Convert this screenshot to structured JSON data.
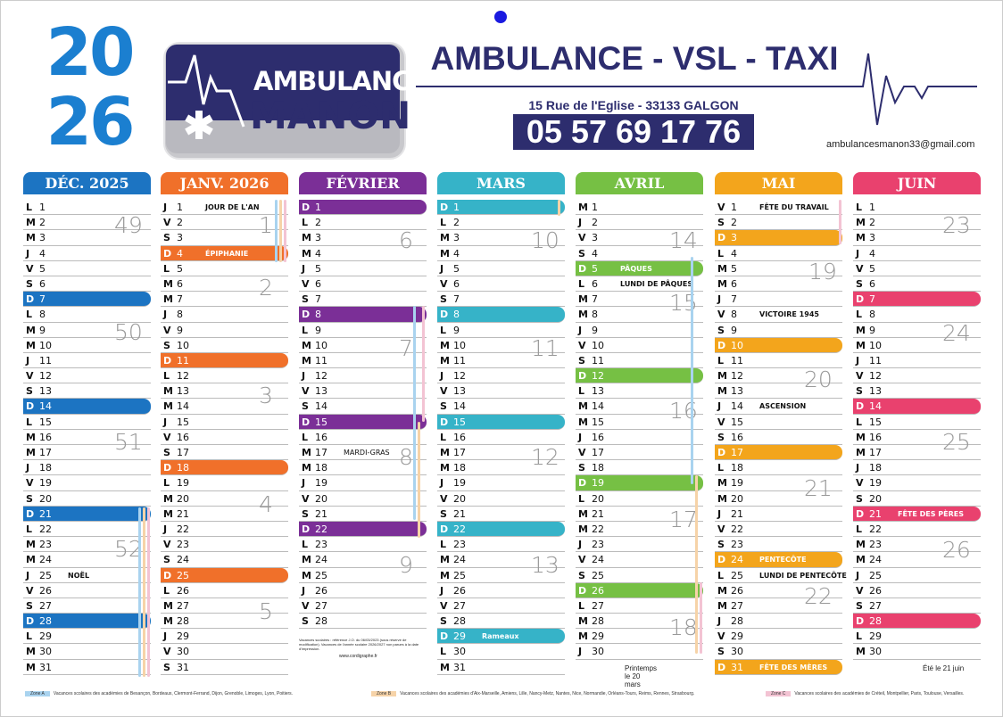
{
  "year": {
    "top": "20",
    "bottom": "26"
  },
  "logo": {
    "line1": "AMBULANCES",
    "line2": "MANON"
  },
  "header": {
    "title": "AMBULANCE - VSL - TAXI",
    "address": "15 Rue de l'Eglise - 33133 GALGON",
    "phone": "05 57 69 17 76",
    "email": "ambulancesmanon33@gmail.com"
  },
  "months": [
    {
      "name": "DÉC. 2025",
      "color": "#1c74c2"
    },
    {
      "name": "JANV. 2026",
      "color": "#f0702a"
    },
    {
      "name": "FÉVRIER",
      "color": "#7b2f97"
    },
    {
      "name": "MARS",
      "color": "#36b3c8"
    },
    {
      "name": "AVRIL",
      "color": "#76c044"
    },
    {
      "name": "MAI",
      "color": "#f3a51c"
    },
    {
      "name": "JUIN",
      "color": "#e9416e"
    }
  ],
  "notes": {
    "feb_footer": "Vacances scolaires : référence J.O. du 06/03/2023 (sous réserve de modification). Vacances de l'année scolaire 2026/2027 non parues à la date d'impression.",
    "feb_url": "www.cordigraphe.fr",
    "mars_printemps": "Printemps le 20 mars",
    "juin_ete": "Été le 21 juin"
  },
  "zones": [
    {
      "tag": "Zone A",
      "text": "Vacances scolaires des académies de Besançon, Bordeaux, Clermont-Ferrand, Dijon, Grenoble, Limoges, Lyon, Poitiers.",
      "color": "#a9d3ef"
    },
    {
      "tag": "Zone B",
      "text": "Vacances scolaires des académies d'Aix-Marseille, Amiens, Lille, Nancy-Metz, Nantes, Nice, Normandie, Orléans-Tours, Reims, Rennes, Strasbourg.",
      "color": "#f6d3a8"
    },
    {
      "tag": "Zone C",
      "text": "Vacances scolaires des académies de Créteil, Montpellier, Paris, Toulouse, Versailles.",
      "color": "#f3c3d3"
    }
  ]
}
